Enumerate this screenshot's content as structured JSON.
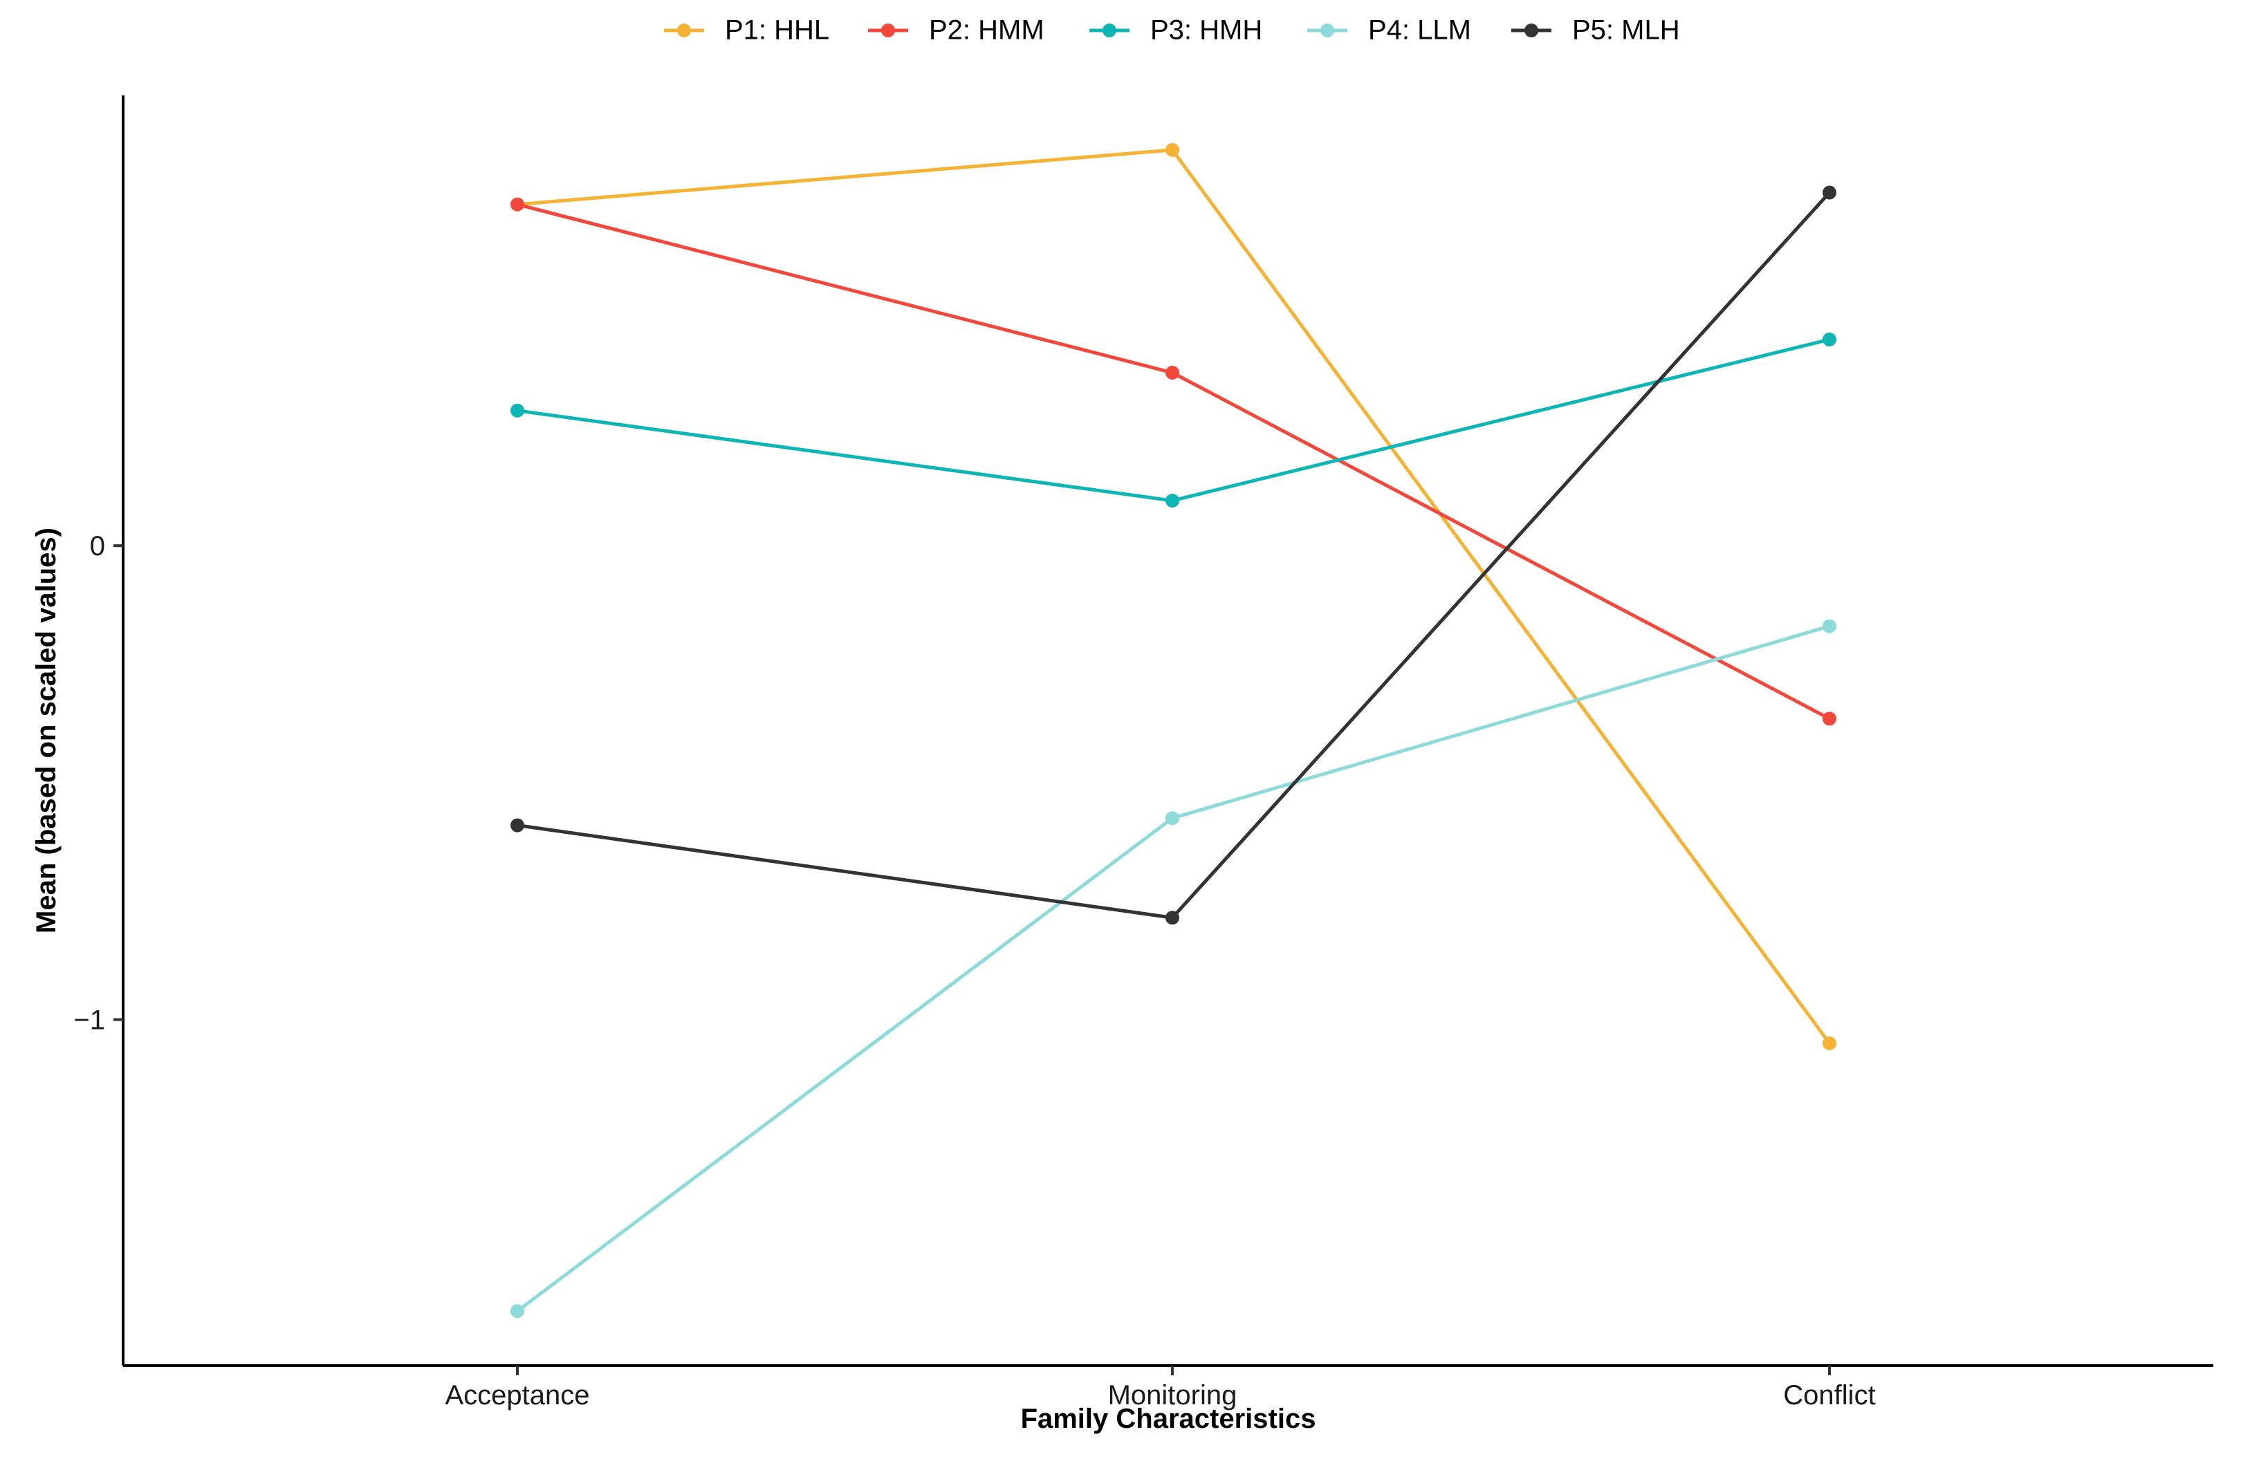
{
  "chart_data": {
    "type": "line",
    "title": "",
    "xlabel": "Family Characteristics",
    "ylabel": "Mean (based on scaled values)",
    "categories": [
      "Acceptance",
      "Monitoring",
      "Conflict"
    ],
    "y_ticks": [
      {
        "value": 0,
        "label": "0"
      },
      {
        "value": -1,
        "label": "−1"
      }
    ],
    "ylim": [
      -1.73,
      0.95
    ],
    "grid": false,
    "legend_position": "top",
    "series": [
      {
        "name": "P1: HHL",
        "color": "#F5B335",
        "values": [
          0.72,
          0.835,
          -1.05
        ]
      },
      {
        "name": "P2: HMM",
        "color": "#F2483B",
        "values": [
          0.72,
          0.365,
          -0.365
        ]
      },
      {
        "name": "P3: HMH",
        "color": "#0EB5B5",
        "values": [
          0.285,
          0.095,
          0.435
        ]
      },
      {
        "name": "P4: LLM",
        "color": "#8DDADA",
        "values": [
          -1.615,
          -0.575,
          -0.17
        ]
      },
      {
        "name": "P5: MLH",
        "color": "#333333",
        "values": [
          -0.59,
          -0.785,
          0.745
        ]
      }
    ]
  }
}
